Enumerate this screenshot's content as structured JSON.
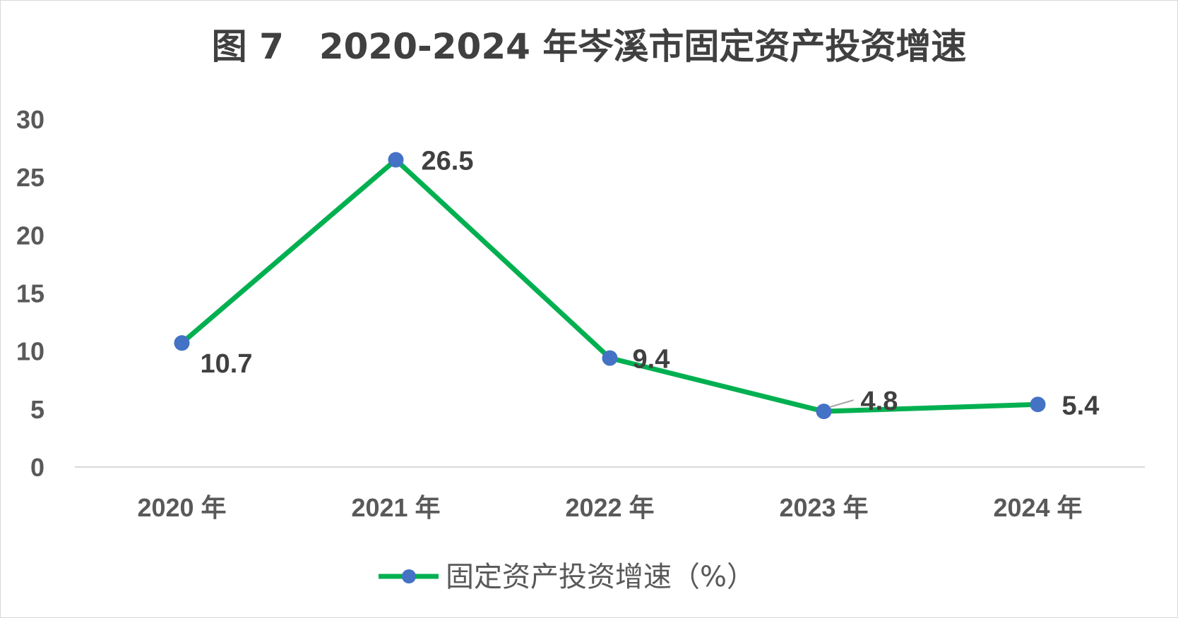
{
  "chart_data": {
    "type": "line",
    "title": "图 7　2020-2024 年岑溪市固定资产投资增速",
    "categories": [
      "2020 年",
      "2021 年",
      "2022 年",
      "2023 年",
      "2024 年"
    ],
    "series": [
      {
        "name": "固定资产投资增速（%）",
        "values": [
          10.7,
          26.5,
          9.4,
          4.8,
          5.4
        ],
        "color": "#00b050",
        "marker_color": "#4472c4"
      }
    ],
    "ylim": [
      0,
      30
    ],
    "yticks": [
      0,
      5,
      10,
      15,
      20,
      25,
      30
    ],
    "data_labels": [
      "10.7",
      "26.5",
      "9.4",
      "4.8",
      "5.4"
    ],
    "grid": false,
    "legend": "bottom"
  }
}
